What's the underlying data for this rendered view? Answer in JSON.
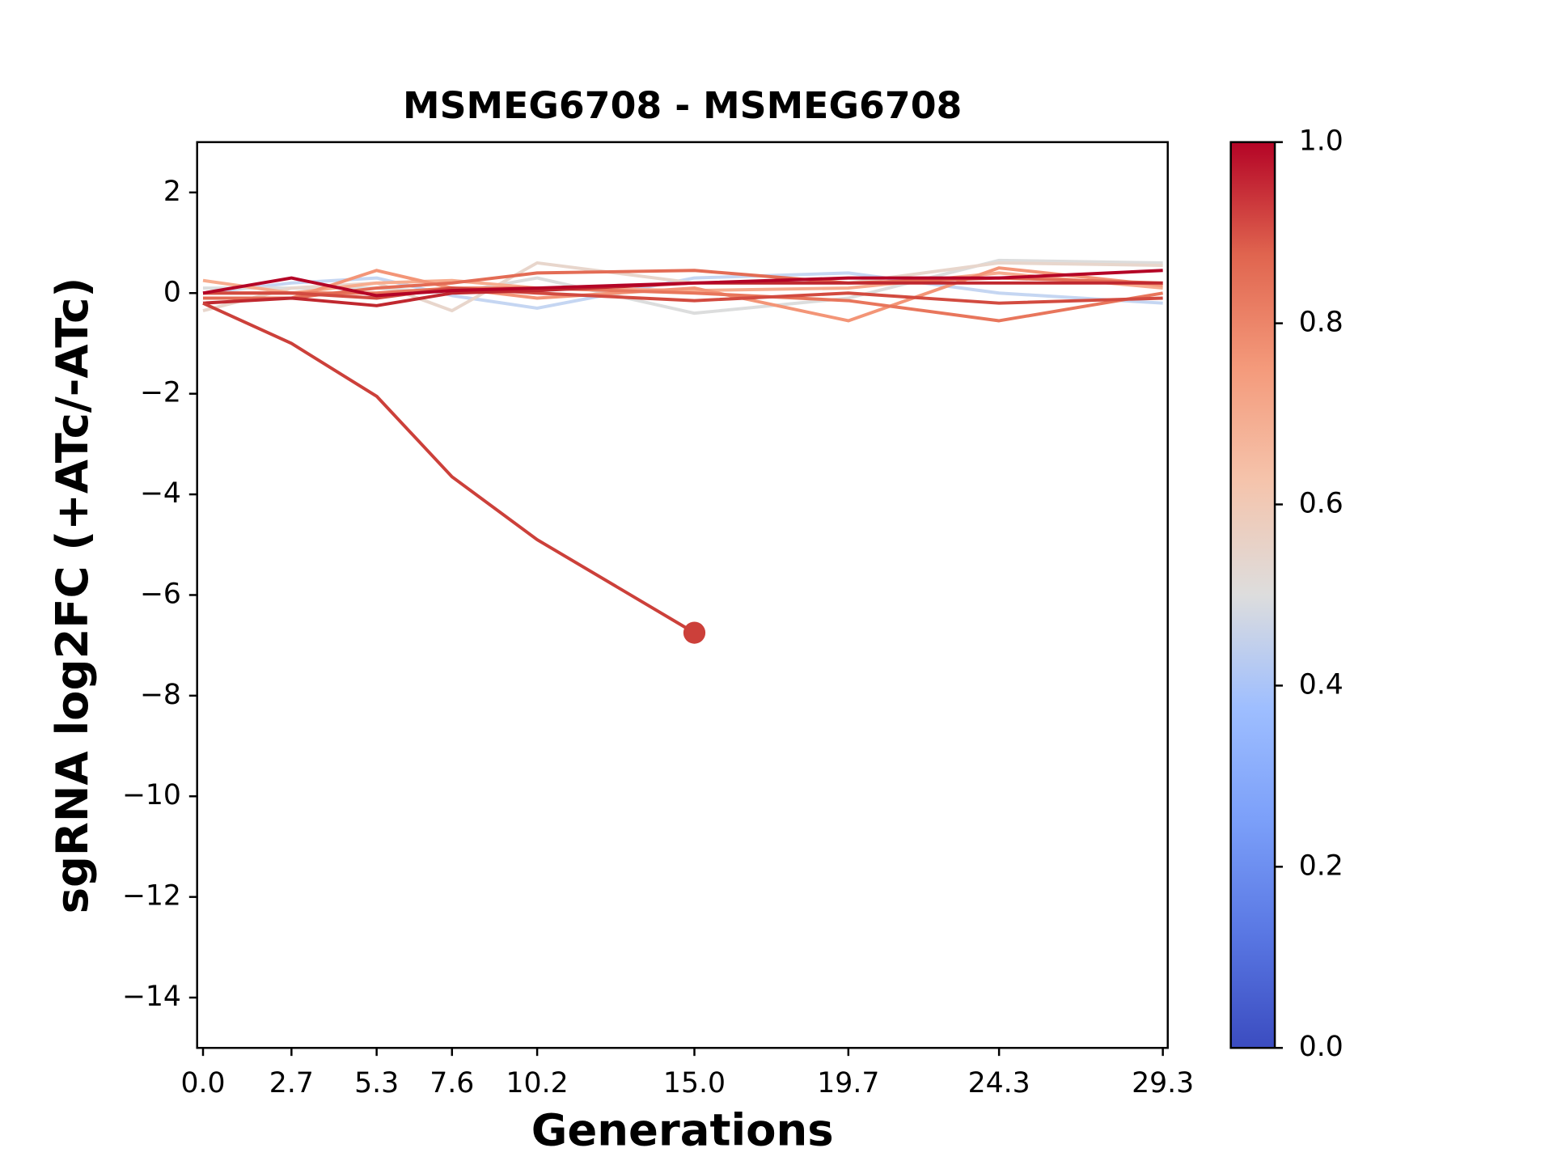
{
  "chart_data": {
    "type": "line",
    "title": "MSMEG6708 - MSMEG6708",
    "xlabel": "Generations",
    "ylabel": "sgRNA log2FC (+ATc/-ATc)",
    "x": [
      0,
      2.7,
      5.3,
      7.6,
      10.2,
      15,
      19.7,
      24.3,
      29.3
    ],
    "xlim": [
      -0.18,
      29.45
    ],
    "xticks": [
      {
        "value": 0,
        "label": "0.0"
      },
      2.7,
      5.3,
      7.6,
      10.2,
      {
        "value": 15,
        "label": "15.0"
      },
      19.7,
      24.3,
      29.3
    ],
    "ylim": [
      -15,
      3
    ],
    "yticks": [
      {
        "value": 2,
        "label": "2"
      },
      0,
      {
        "value": -2,
        "label": "−2"
      },
      {
        "value": -4,
        "label": "−4"
      },
      {
        "value": -6,
        "label": "−6"
      },
      {
        "value": -8,
        "label": "−8"
      },
      {
        "value": -10,
        "label": "−10"
      },
      {
        "value": -12,
        "label": "−12"
      },
      {
        "value": -14,
        "label": "−14"
      }
    ],
    "series": [
      {
        "color": "#c5d6f2",
        "values": [
          0.0,
          0.2,
          0.3,
          -0.05,
          -0.3,
          0.3,
          0.4,
          0.0,
          -0.2
        ]
      },
      {
        "color": "#dcdddd",
        "values": [
          0.1,
          0.1,
          0.1,
          0.0,
          0.3,
          -0.4,
          -0.1,
          0.65,
          0.6
        ]
      },
      {
        "color": "#e8d6cc",
        "values": [
          -0.35,
          0.1,
          0.2,
          -0.35,
          0.6,
          0.2,
          0.2,
          0.6,
          0.55
        ]
      },
      {
        "color": "#f7ac8e",
        "values": [
          0.25,
          0.0,
          0.2,
          0.25,
          0.1,
          0.05,
          0.1,
          0.4,
          0.1
        ]
      },
      {
        "color": "#f39577",
        "values": [
          -0.1,
          -0.1,
          0.45,
          0.1,
          -0.1,
          0.1,
          -0.55,
          0.5,
          0.15
        ]
      },
      {
        "color": "#e8765c",
        "values": [
          0.0,
          0.0,
          0.0,
          0.1,
          0.1,
          0.0,
          -0.15,
          -0.55,
          0.0
        ]
      },
      {
        "color": "#e36c55",
        "values": [
          -0.1,
          -0.1,
          0.1,
          0.2,
          0.4,
          0.45,
          0.2,
          0.3,
          0.2
        ]
      },
      {
        "color": "#d24b40",
        "values": [
          0.0,
          0.0,
          -0.1,
          0.1,
          0.0,
          -0.15,
          0.0,
          -0.2,
          -0.1
        ]
      },
      {
        "color": "#c0282f",
        "values": [
          -0.2,
          -0.1,
          -0.25,
          0.0,
          0.05,
          0.2,
          0.2,
          0.2,
          0.2
        ]
      },
      {
        "color": "#b40426",
        "values": [
          0.0,
          0.3,
          -0.05,
          0.05,
          0.1,
          0.2,
          0.3,
          0.3,
          0.45
        ]
      },
      {
        "color": "#cc403a",
        "values": [
          -0.2,
          -1.0,
          -2.05,
          -3.65,
          -4.9,
          -6.75,
          null,
          null,
          null
        ],
        "marker_last": true
      }
    ],
    "colorbar": {
      "lim": [
        0,
        1
      ],
      "ticks": [
        {
          "value": 0,
          "label": "0.0"
        },
        0.2,
        0.4,
        0.6,
        0.8,
        {
          "value": 1,
          "label": "1.0"
        }
      ],
      "colors": [
        "#3b4cc0",
        "#5977e3",
        "#7b9ff9",
        "#9ebeff",
        "#dddddd",
        "#f5c4ac",
        "#f49a7b",
        "#e0654f",
        "#b40426"
      ]
    }
  }
}
